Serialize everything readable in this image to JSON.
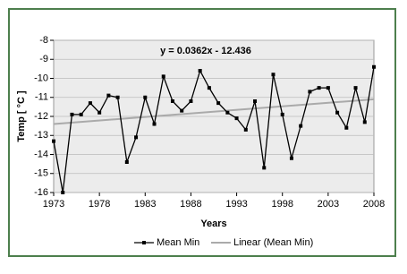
{
  "chart_data": {
    "type": "line",
    "annotation": "y = 0.0362x - 12.436",
    "xlabel": "Years",
    "ylabel": "Temp [ °C ]",
    "x": [
      1973,
      1974,
      1975,
      1976,
      1977,
      1978,
      1979,
      1980,
      1981,
      1982,
      1983,
      1984,
      1985,
      1986,
      1987,
      1988,
      1989,
      1990,
      1991,
      1992,
      1993,
      1994,
      1995,
      1996,
      1997,
      1998,
      1999,
      2000,
      2001,
      2002,
      2003,
      2004,
      2005,
      2006,
      2007,
      2008
    ],
    "series": [
      {
        "name": "Mean Min",
        "color": "#000000",
        "values": [
          -13.3,
          -16.0,
          -11.9,
          -11.9,
          -11.3,
          -11.8,
          -10.9,
          -11.0,
          -14.4,
          -13.1,
          -11.0,
          -12.4,
          -9.9,
          -11.2,
          -11.7,
          -11.2,
          -9.6,
          -10.5,
          -11.3,
          -11.8,
          -12.1,
          -12.7,
          -11.2,
          -14.7,
          -9.8,
          -11.9,
          -14.2,
          -12.5,
          -10.7,
          -10.5,
          -10.5,
          -11.8,
          -12.6,
          -10.5,
          -12.3,
          -9.4
        ]
      }
    ],
    "trend": {
      "name": "Linear (Mean Min)",
      "color": "#aaaaaa",
      "x": [
        1973,
        2008
      ],
      "values": [
        -12.4,
        -11.1
      ]
    },
    "xlim": [
      1973,
      2008
    ],
    "xticks": [
      1973,
      1978,
      1983,
      1988,
      1993,
      1998,
      2003,
      2008
    ],
    "ylim": [
      -16,
      -8
    ],
    "yticks": [
      -8,
      -9,
      -10,
      -11,
      -12,
      -13,
      -14,
      -15,
      -16
    ],
    "grid": true,
    "legend": "bottom"
  }
}
